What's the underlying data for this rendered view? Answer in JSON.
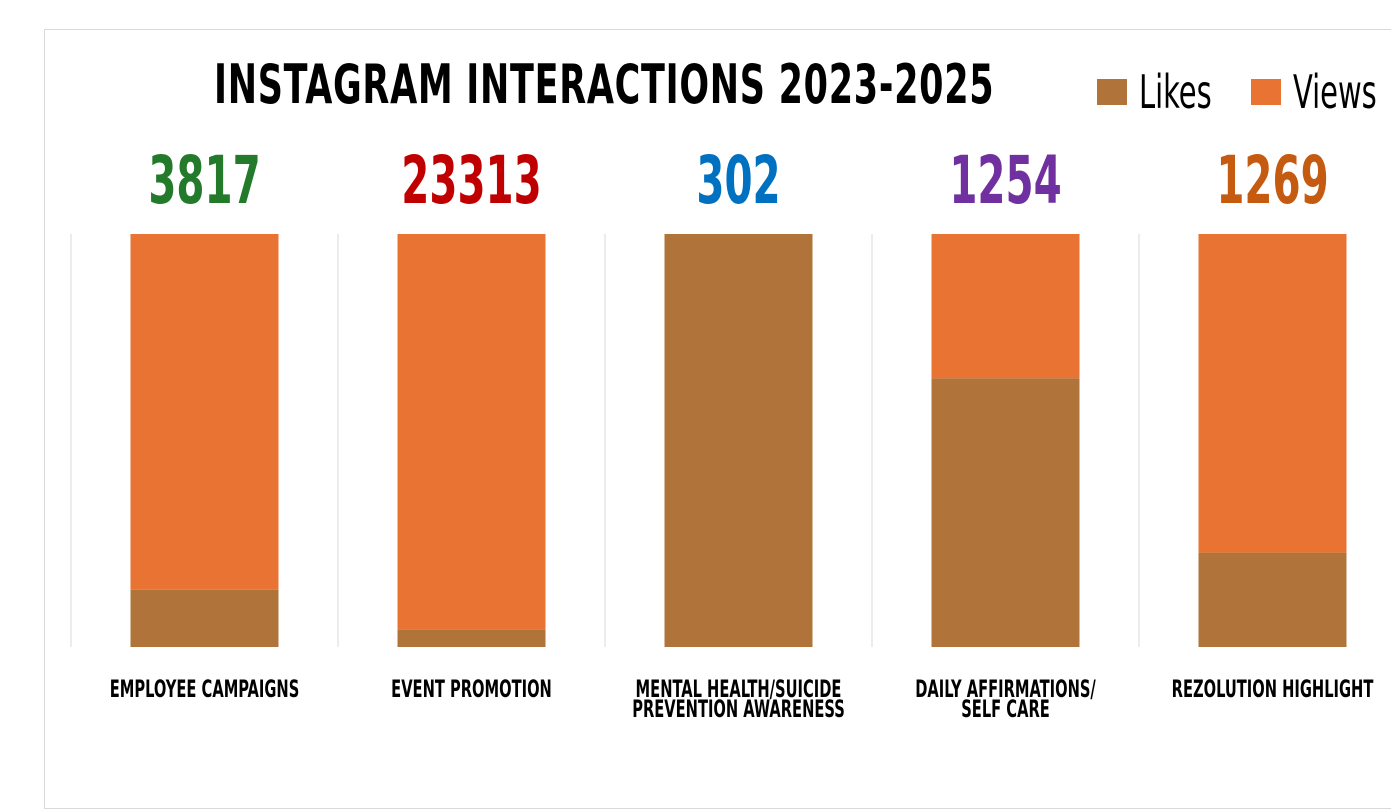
{
  "chart_data": {
    "type": "bar",
    "title": "INSTAGRAM INTERACTIONS 2023-2025",
    "categories": [
      "EMPLOYEE CAMPAIGNS",
      "EVENT PROMOTION",
      "MENTAL HEALTH/SUICIDE PREVENTION AWARENESS",
      "DAILY AFFIRMATIONS/SELF CARE",
      "REZOLUTION HIGHLIGHT"
    ],
    "stacked": "100%",
    "series": [
      {
        "name": "Likes",
        "color": "#b0743b",
        "values": [
          528,
          964,
          302,
          816,
          290
        ]
      },
      {
        "name": "Views",
        "color": "#e97332",
        "values": [
          3289,
          22349,
          0,
          438,
          979
        ]
      }
    ],
    "totals": [
      "3817",
      "23313",
      "302",
      "1254",
      "1269"
    ],
    "total_colors": [
      "#237a2a",
      "#c00000",
      "#0070c0",
      "#7030a0",
      "#c55a11"
    ],
    "ylim": [
      0,
      1
    ],
    "grid": false,
    "legend_position": "top-right"
  }
}
